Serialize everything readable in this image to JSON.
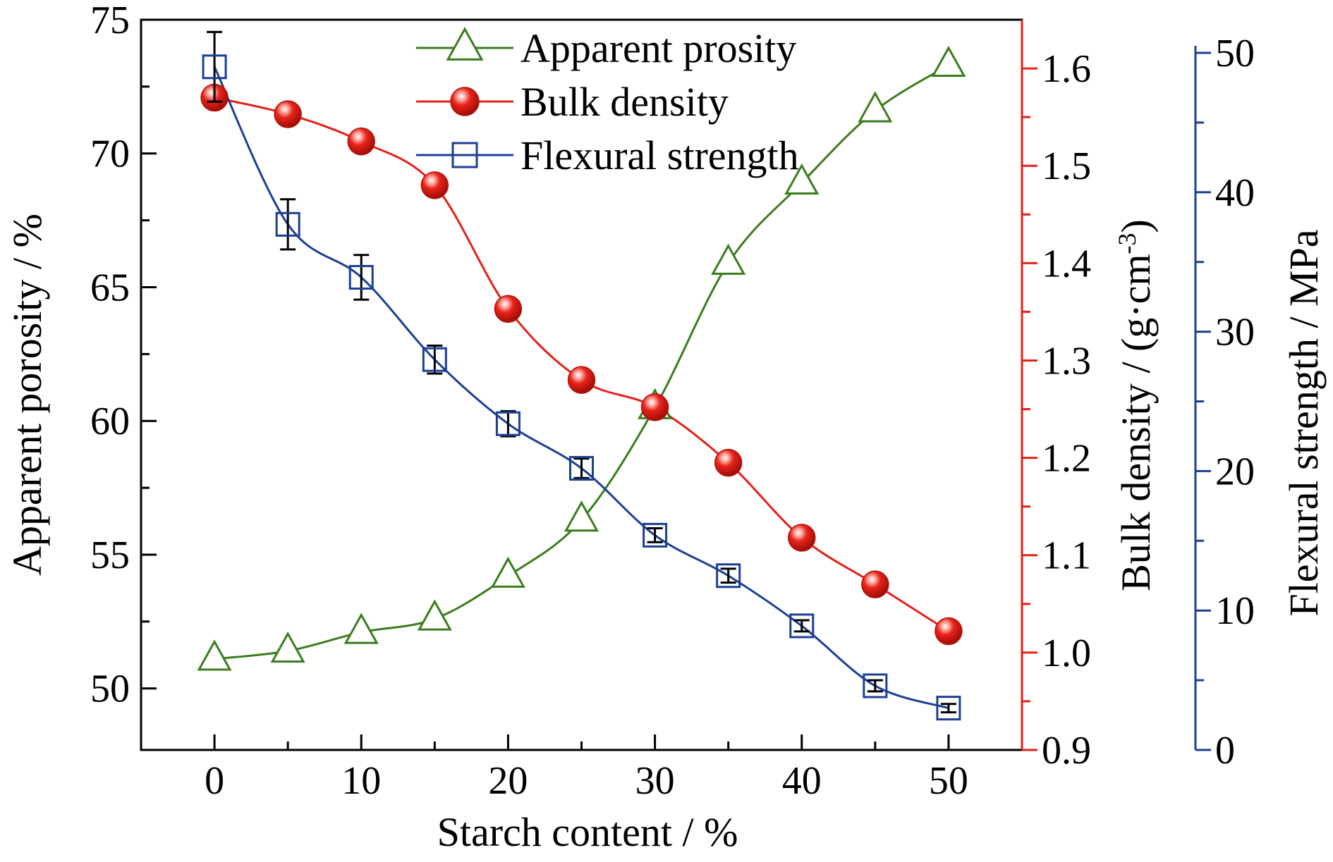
{
  "chart_data": {
    "type": "line",
    "xlabel": "Starch content / %",
    "x": [
      0,
      5,
      10,
      15,
      20,
      25,
      30,
      35,
      40,
      45,
      50
    ],
    "xlim": [
      -5,
      55
    ],
    "xticks": [
      0,
      10,
      20,
      30,
      40,
      50
    ],
    "axes": {
      "left": {
        "label": "Apparent porosity / %",
        "ylim": [
          47.7,
          75
        ],
        "ticks": [
          50,
          55,
          60,
          65,
          70,
          75
        ],
        "color": "#000000"
      },
      "right1": {
        "label_main": "Bulk density / (g·cm",
        "label_sup": "-3",
        "label_end": ")",
        "ylim": [
          0.9,
          1.65
        ],
        "ticks": [
          "0.9",
          "1.0",
          "1.1",
          "1.2",
          "1.3",
          "1.4",
          "1.5",
          "1.6"
        ],
        "color": "#e32119"
      },
      "right2": {
        "label": "Flexural strength / MPa",
        "ylim": [
          0,
          50
        ],
        "ticks": [
          0,
          10,
          20,
          30,
          40,
          50
        ],
        "color": "#1c3f94"
      }
    },
    "series": [
      {
        "name": "Apparent prosity",
        "axis": "left",
        "marker": "triangle-open",
        "color": "#3a7d1c",
        "values": [
          51.1,
          51.4,
          52.1,
          52.6,
          54.2,
          56.3,
          60.5,
          65.9,
          68.9,
          71.6,
          73.3
        ]
      },
      {
        "name": "Bulk density",
        "axis": "right1",
        "marker": "sphere",
        "color": "#e32119",
        "values": [
          1.57,
          1.553,
          1.525,
          1.48,
          1.353,
          1.28,
          1.252,
          1.195,
          1.118,
          1.07,
          1.022
        ]
      },
      {
        "name": "Flexural strength",
        "axis": "right2",
        "marker": "square-open",
        "color": "#1c3f94",
        "values": [
          49.0,
          37.7,
          33.9,
          28.0,
          23.4,
          20.2,
          15.4,
          12.5,
          8.9,
          4.6,
          3.0
        ],
        "errors": [
          2.5,
          1.8,
          1.6,
          1.0,
          0.9,
          0.7,
          0.5,
          0.5,
          0.4,
          0.4,
          0.3
        ]
      }
    ],
    "legend_position": "top-center"
  }
}
